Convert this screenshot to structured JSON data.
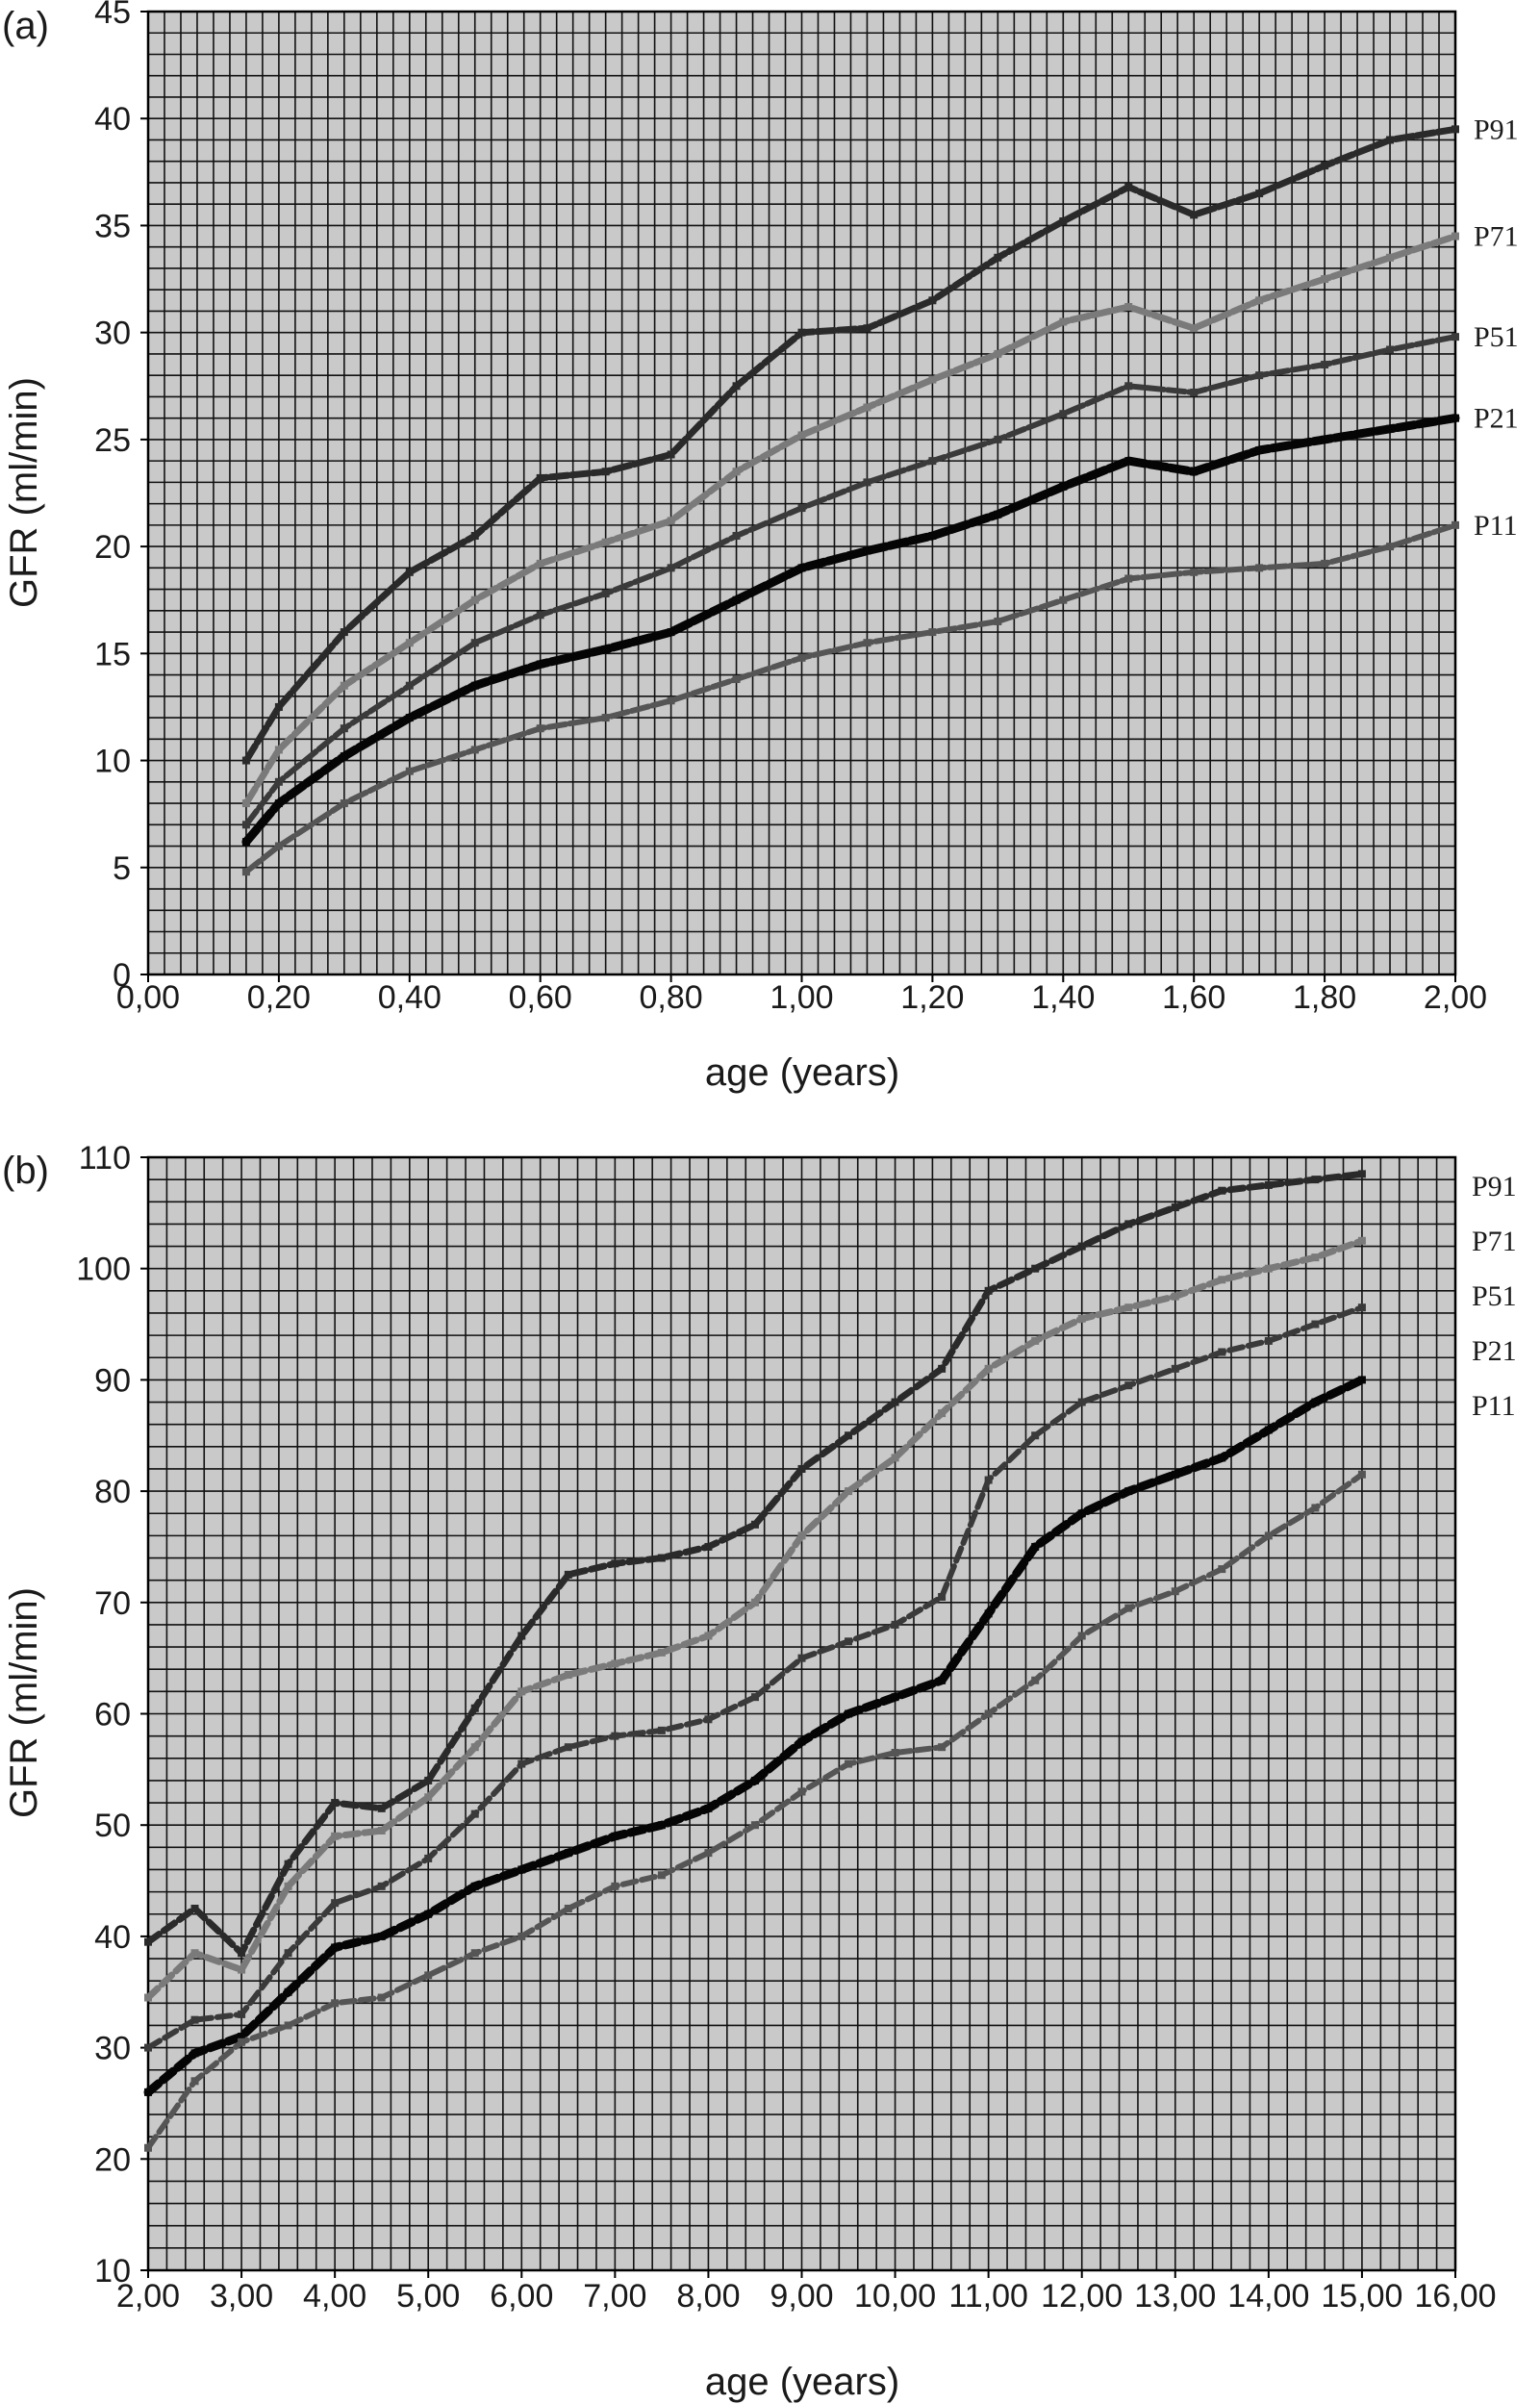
{
  "chart_data": [
    {
      "type": "line",
      "panel_label": "(a)",
      "xlabel": "age (years)",
      "ylabel": "GFR (ml/min)",
      "xlim": [
        0,
        2
      ],
      "ylim": [
        0,
        45
      ],
      "grid": true,
      "x_tick_labels": [
        "0,00",
        "0,20",
        "0,40",
        "0,60",
        "0,80",
        "1,00",
        "1,20",
        "1,40",
        "1,60",
        "1,80",
        "2,00"
      ],
      "y_tick_labels": [
        "0",
        "5",
        "10",
        "15",
        "20",
        "25",
        "30",
        "35",
        "40",
        "45"
      ],
      "series": [
        {
          "name": "P91",
          "x": [
            0.15,
            0.2,
            0.3,
            0.4,
            0.5,
            0.6,
            0.7,
            0.8,
            0.9,
            1.0,
            1.1,
            1.2,
            1.3,
            1.4,
            1.5,
            1.6,
            1.7,
            1.8,
            1.9,
            2.0
          ],
          "y": [
            10,
            12.5,
            16,
            18.8,
            20.5,
            23.2,
            23.5,
            24.3,
            27.5,
            30,
            30.2,
            31.5,
            33.5,
            35.2,
            36.8,
            35.5,
            36.5,
            37.8,
            39,
            39.5
          ]
        },
        {
          "name": "P71",
          "x": [
            0.15,
            0.2,
            0.3,
            0.4,
            0.5,
            0.6,
            0.7,
            0.8,
            0.9,
            1.0,
            1.1,
            1.2,
            1.3,
            1.4,
            1.5,
            1.6,
            1.7,
            1.8,
            1.9,
            2.0
          ],
          "y": [
            8,
            10.5,
            13.5,
            15.5,
            17.5,
            19.2,
            20.2,
            21.2,
            23.5,
            25.2,
            26.5,
            27.8,
            29,
            30.5,
            31.2,
            30.2,
            31.5,
            32.5,
            33.5,
            34.5
          ]
        },
        {
          "name": "P51",
          "x": [
            0.15,
            0.2,
            0.3,
            0.4,
            0.5,
            0.6,
            0.7,
            0.8,
            0.9,
            1.0,
            1.1,
            1.2,
            1.3,
            1.4,
            1.5,
            1.6,
            1.7,
            1.8,
            1.9,
            2.0
          ],
          "y": [
            7,
            9,
            11.5,
            13.5,
            15.5,
            16.8,
            17.8,
            19,
            20.5,
            21.8,
            23,
            24,
            25,
            26.2,
            27.5,
            27.2,
            28,
            28.5,
            29.2,
            29.8
          ]
        },
        {
          "name": "P21",
          "x": [
            0.15,
            0.2,
            0.3,
            0.4,
            0.5,
            0.6,
            0.7,
            0.8,
            0.9,
            1.0,
            1.1,
            1.2,
            1.3,
            1.4,
            1.5,
            1.6,
            1.7,
            1.8,
            1.9,
            2.0
          ],
          "y": [
            6.2,
            8,
            10.2,
            12,
            13.5,
            14.5,
            15.2,
            16,
            17.5,
            19,
            19.8,
            20.5,
            21.5,
            22.8,
            24,
            23.5,
            24.5,
            25,
            25.5,
            26
          ]
        },
        {
          "name": "P11",
          "x": [
            0.15,
            0.2,
            0.3,
            0.4,
            0.5,
            0.6,
            0.7,
            0.8,
            0.9,
            1.0,
            1.1,
            1.2,
            1.3,
            1.4,
            1.5,
            1.6,
            1.7,
            1.8,
            1.9,
            2.0
          ],
          "y": [
            4.8,
            6,
            8,
            9.5,
            10.5,
            11.5,
            12,
            12.8,
            13.8,
            14.8,
            15.5,
            16,
            16.5,
            17.5,
            18.5,
            18.8,
            19,
            19.2,
            20,
            21
          ]
        }
      ]
    },
    {
      "type": "line",
      "panel_label": "(b)",
      "xlabel": "age (years)",
      "ylabel": "GFR (ml/min)",
      "xlim": [
        2,
        16
      ],
      "ylim": [
        10,
        110
      ],
      "grid": true,
      "x_tick_labels": [
        "2,00",
        "3,00",
        "4,00",
        "5,00",
        "6,00",
        "7,00",
        "8,00",
        "9,00",
        "10,00",
        "11,00",
        "12,00",
        "13,00",
        "14,00",
        "15,00",
        "16,00"
      ],
      "y_tick_labels": [
        "10",
        "20",
        "30",
        "40",
        "50",
        "60",
        "70",
        "80",
        "90",
        "100",
        "110"
      ],
      "series": [
        {
          "name": "P91",
          "x": [
            2,
            2.5,
            3,
            3.5,
            4,
            4.5,
            5,
            5.5,
            6,
            6.5,
            7,
            7.5,
            8,
            8.5,
            9,
            9.5,
            10,
            10.5,
            11,
            11.5,
            12,
            12.5,
            13,
            13.5,
            14,
            14.5,
            15
          ],
          "y": [
            39.5,
            42.5,
            38.5,
            46.5,
            52,
            51.5,
            54,
            60.5,
            67,
            72.5,
            73.5,
            74,
            75,
            77,
            82,
            85,
            88,
            91,
            98,
            100,
            102,
            104,
            105.5,
            107,
            107.5,
            108,
            108.5
          ]
        },
        {
          "name": "P71",
          "x": [
            2,
            2.5,
            3,
            3.5,
            4,
            4.5,
            5,
            5.5,
            6,
            6.5,
            7,
            7.5,
            8,
            8.5,
            9,
            9.5,
            10,
            10.5,
            11,
            11.5,
            12,
            12.5,
            13,
            13.5,
            14,
            14.5,
            15
          ],
          "y": [
            34.5,
            38.5,
            37,
            44.5,
            49,
            49.5,
            52.5,
            57,
            62,
            63.5,
            64.5,
            65.5,
            67,
            70,
            76,
            80,
            83,
            87,
            91,
            93.5,
            95.5,
            96.5,
            97.5,
            99,
            100,
            101,
            102.5
          ]
        },
        {
          "name": "P51",
          "x": [
            2,
            2.5,
            3,
            3.5,
            4,
            4.5,
            5,
            5.5,
            6,
            6.5,
            7,
            7.5,
            8,
            8.5,
            9,
            9.5,
            10,
            10.5,
            11,
            11.5,
            12,
            12.5,
            13,
            13.5,
            14,
            14.5,
            15
          ],
          "y": [
            30,
            32.5,
            33,
            38.5,
            43,
            44.5,
            47,
            51,
            55.5,
            57,
            58,
            58.5,
            59.5,
            61.5,
            65,
            66.5,
            68,
            70.5,
            81,
            85,
            88,
            89.5,
            91,
            92.5,
            93.5,
            95,
            96.5
          ]
        },
        {
          "name": "P21",
          "x": [
            2,
            2.5,
            3,
            3.5,
            4,
            4.5,
            5,
            5.5,
            6,
            6.5,
            7,
            7.5,
            8,
            8.5,
            9,
            9.5,
            10,
            10.5,
            11,
            11.5,
            12,
            12.5,
            13,
            13.5,
            14,
            14.5,
            15
          ],
          "y": [
            26,
            29.5,
            31,
            35,
            39,
            40,
            42,
            44.5,
            46,
            47.5,
            49,
            50,
            51.5,
            54,
            57.5,
            60,
            61.5,
            63,
            69,
            75,
            78,
            80,
            81.5,
            83,
            85.5,
            88,
            90
          ]
        },
        {
          "name": "P11",
          "x": [
            2,
            2.5,
            3,
            3.5,
            4,
            4.5,
            5,
            5.5,
            6,
            6.5,
            7,
            7.5,
            8,
            8.5,
            9,
            9.5,
            10,
            10.5,
            11,
            11.5,
            12,
            12.5,
            13,
            13.5,
            14,
            14.5,
            15
          ],
          "y": [
            21,
            27,
            30.5,
            32,
            34,
            34.5,
            36.5,
            38.5,
            40,
            42.5,
            44.5,
            45.5,
            47.5,
            50,
            53,
            55.5,
            56.5,
            57,
            60,
            63,
            67,
            69.5,
            71,
            73,
            76,
            78.5,
            81.5
          ]
        }
      ]
    }
  ]
}
